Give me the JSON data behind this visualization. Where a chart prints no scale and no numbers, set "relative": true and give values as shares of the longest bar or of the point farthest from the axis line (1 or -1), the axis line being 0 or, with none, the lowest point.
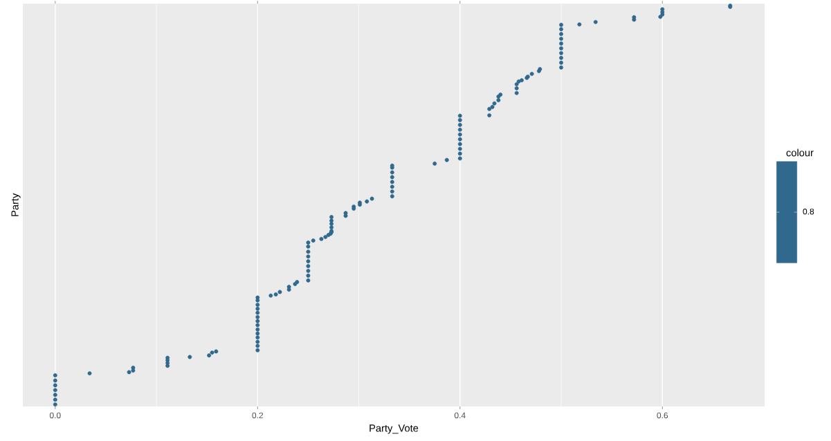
{
  "chart_data": {
    "type": "scatter",
    "xlabel": "Party_Vote",
    "ylabel": "Party",
    "legend_title": "colour",
    "relative": true,
    "tick_labels": "x",
    "grid": "x",
    "legend": "right",
    "marker": "circle",
    "xlim": [
      -0.032,
      0.701
    ],
    "xticks": [
      {
        "value": 0,
        "label": "0.0"
      },
      {
        "value": 0.2,
        "label": "0.2"
      },
      {
        "value": 0.4,
        "label": "0.4"
      },
      {
        "value": 0.6,
        "label": "0.6"
      }
    ],
    "series": [
      {
        "name": "0.8",
        "color": "#31688e",
        "x": [
          0,
          0,
          0,
          0,
          0,
          0,
          0,
          0.034,
          0.073,
          0.077,
          0.077,
          0.111,
          0.111,
          0.111,
          0.111,
          0.133,
          0.152,
          0.155,
          0.159,
          0.2,
          0.2,
          0.2,
          0.2,
          0.2,
          0.2,
          0.2,
          0.2,
          0.2,
          0.2,
          0.2,
          0.2,
          0.2,
          0.2,
          0.213,
          0.218,
          0.222,
          0.231,
          0.231,
          0.237,
          0.239,
          0.25,
          0.25,
          0.25,
          0.25,
          0.25,
          0.25,
          0.25,
          0.25,
          0.25,
          0.255,
          0.263,
          0.267,
          0.27,
          0.272,
          0.273,
          0.273,
          0.273,
          0.273,
          0.273,
          0.273,
          0.287,
          0.287,
          0.295,
          0.295,
          0.301,
          0.301,
          0.308,
          0.313,
          0.333,
          0.333,
          0.333,
          0.333,
          0.333,
          0.333,
          0.333,
          0.333,
          0.375,
          0.387,
          0.4,
          0.4,
          0.4,
          0.4,
          0.4,
          0.4,
          0.4,
          0.4,
          0.4,
          0.4,
          0.429,
          0.429,
          0.432,
          0.434,
          0.438,
          0.438,
          0.44,
          0.456,
          0.456,
          0.456,
          0.458,
          0.461,
          0.466,
          0.467,
          0.471,
          0.478,
          0.479,
          0.5,
          0.5,
          0.5,
          0.5,
          0.5,
          0.5,
          0.5,
          0.5,
          0.5,
          0.5,
          0.518,
          0.534,
          0.572,
          0.572,
          0.598,
          0.6,
          0.6,
          0.6,
          0.667,
          0.667
        ],
        "values": [
          0,
          0.012,
          0.024,
          0.036,
          0.048,
          0.06,
          0.073,
          0.078,
          0.081,
          0.085,
          0.092,
          0.097,
          0.104,
          0.111,
          0.117,
          0.119,
          0.123,
          0.13,
          0.133,
          0.136,
          0.147,
          0.157,
          0.168,
          0.178,
          0.188,
          0.199,
          0.209,
          0.219,
          0.23,
          0.24,
          0.25,
          0.261,
          0.268,
          0.273,
          0.276,
          0.282,
          0.288,
          0.295,
          0.302,
          0.307,
          0.311,
          0.323,
          0.335,
          0.347,
          0.359,
          0.371,
          0.383,
          0.396,
          0.406,
          0.411,
          0.415,
          0.42,
          0.425,
          0.428,
          0.432,
          0.435,
          0.444,
          0.453,
          0.461,
          0.47,
          0.473,
          0.48,
          0.491,
          0.496,
          0.501,
          0.506,
          0.509,
          0.516,
          0.522,
          0.534,
          0.546,
          0.558,
          0.57,
          0.582,
          0.594,
          0.599,
          0.604,
          0.613,
          0.617,
          0.629,
          0.641,
          0.653,
          0.665,
          0.677,
          0.689,
          0.701,
          0.713,
          0.724,
          0.725,
          0.741,
          0.746,
          0.755,
          0.763,
          0.772,
          0.777,
          0.781,
          0.793,
          0.803,
          0.81,
          0.813,
          0.819,
          0.822,
          0.829,
          0.836,
          0.841,
          0.845,
          0.857,
          0.869,
          0.881,
          0.893,
          0.905,
          0.917,
          0.929,
          0.941,
          0.952,
          0.953,
          0.959,
          0.965,
          0.971,
          0.972,
          0.978,
          0.984,
          0.991,
          0.997,
          1
        ]
      }
    ]
  }
}
